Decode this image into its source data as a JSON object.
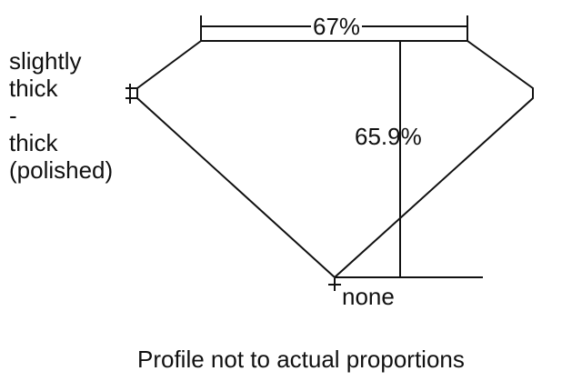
{
  "girdle_label": [
    "slightly",
    "thick",
    "-",
    "thick",
    "(polished)"
  ],
  "table_label": "67%",
  "depth_label": "65.9%",
  "culet_label": "none",
  "caption": "Profile not to actual proportions"
}
